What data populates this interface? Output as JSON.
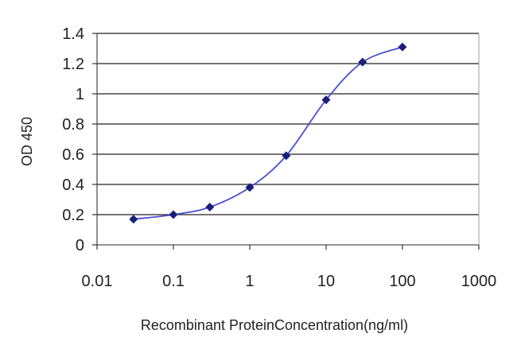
{
  "chart_data": {
    "type": "line",
    "title": "",
    "xlabel": "Recombinant ProteinConcentration(ng/ml)",
    "ylabel": "OD 450",
    "x_scale": "log",
    "xlim": [
      0.01,
      1000
    ],
    "ylim": [
      0,
      1.4
    ],
    "x_ticks": [
      0.01,
      0.1,
      1,
      10,
      100,
      1000
    ],
    "x_tick_labels": [
      "0.01",
      "0.1",
      "1",
      "10",
      "100",
      "1000"
    ],
    "y_ticks": [
      0,
      0.2,
      0.4,
      0.6,
      0.8,
      1,
      1.2,
      1.4
    ],
    "y_tick_labels": [
      "0",
      "0.2",
      "0.4",
      "0.6",
      "0.8",
      "1",
      "1.2",
      "1.4"
    ],
    "grid": "horizontal",
    "legend": "none",
    "series": [
      {
        "x": [
          0.03,
          0.1,
          0.3,
          1,
          3,
          10,
          30,
          100
        ],
        "y": [
          0.17,
          0.2,
          0.25,
          0.38,
          0.59,
          0.96,
          1.21,
          1.31
        ],
        "color": "#4a4fd0",
        "marker_color": "#1a1f7a",
        "marker": "diamond"
      }
    ]
  }
}
